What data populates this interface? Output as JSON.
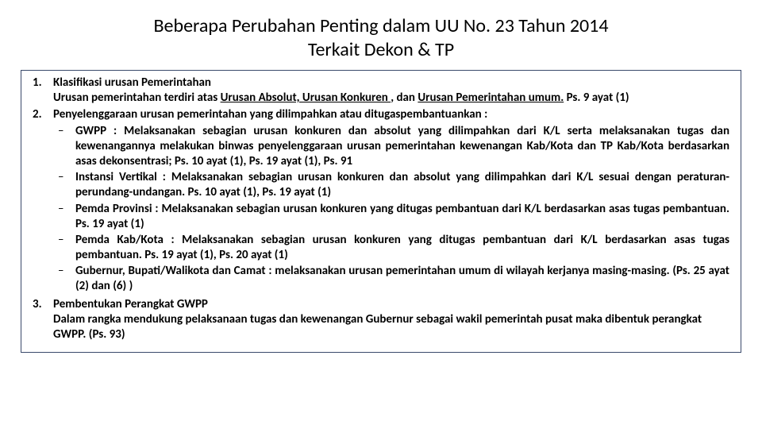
{
  "title_line1": "Beberapa Perubahan Penting dalam UU No. 23 Tahun 2014",
  "title_line2": "Terkait Dekon & TP",
  "items": {
    "n1": "1.",
    "i1_head": "Klasifikasi urusan Pemerintahan",
    "i1_pre": "Urusan pemerintahan terdiri atas ",
    "i1_u1": "Urusan Absolut, Urusan Konkuren ",
    "i1_mid": ", dan ",
    "i1_u2": "Urusan Pemerintahan umum.",
    "i1_tail": "  Ps. 9 ayat (1)",
    "n2": "2.",
    "i2_head": "Penyelenggaraan urusan pemerintahan yang dilimpahkan atau ditugaspembantuankan :",
    "s1": "GWPP : Melaksanakan sebagian urusan konkuren dan absolut yang dilimpahkan dari K/L serta  melaksanakan tugas dan kewenangannya melakukan binwas penyelenggaraan urusan pemerintahan  kewenangan Kab/Kota dan TP Kab/Kota berdasarkan asas dekonsentrasi; Ps. 10 ayat (1), Ps. 19 ayat (1), Ps. 91",
    "s2": "Instansi Vertikal : Melaksanakan sebagian urusan konkuren dan absolut yang dilimpahkan dari K/L  sesuai dengan peraturan-perundang-undangan. Ps. 10 ayat (1), Ps. 19 ayat (1)",
    "s3": "Pemda Provinsi : Melaksanakan sebagian urusan konkuren yang ditugas pembantuan dari K/L  berdasarkan asas tugas pembantuan. Ps. 19 ayat (1)",
    "s4": "Pemda Kab/Kota : Melaksanakan sebagian urusan konkuren yang ditugas pembantuan dari K/L  berdasarkan asas tugas pembantuan. Ps. 19 ayat (1), Ps. 20 ayat (1)",
    "s5": "Gubernur, Bupati/Walikota dan Camat : melaksanakan urusan pemerintahan umum di wilayah  kerjanya masing-masing. (Ps. 25 ayat (2) dan (6) )",
    "n3": "3.",
    "i3_head": "Pembentukan Perangkat GWPP",
    "i3_body": "Dalam rangka mendukung pelaksanaan tugas dan kewenangan Gubernur sebagai wakil pemerintah  pusat maka dibentuk perangkat GWPP. (Ps. 93)",
    "dash": "–"
  }
}
